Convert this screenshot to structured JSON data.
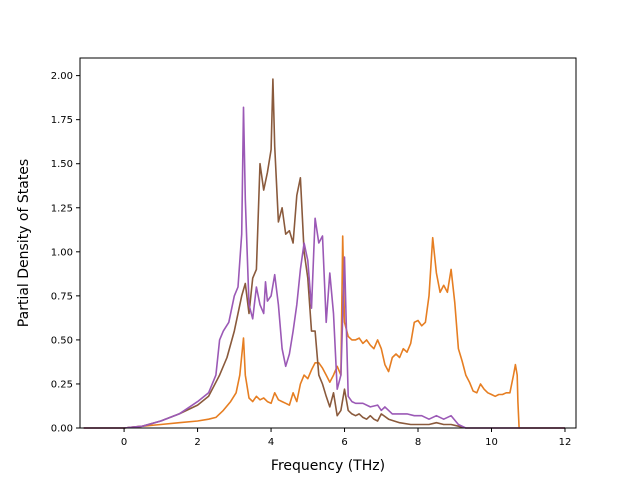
{
  "chart_data": {
    "type": "line",
    "title": "",
    "xlabel": "Frequency (THz)",
    "ylabel": "Partial Density of States",
    "xlim": [
      -1.2,
      12.3
    ],
    "ylim": [
      0,
      2.1
    ],
    "xticks": [
      0,
      2,
      4,
      6,
      8,
      10,
      12
    ],
    "xtick_labels": [
      "0",
      "2",
      "4",
      "6",
      "8",
      "10",
      "12"
    ],
    "yticks": [
      0,
      0.25,
      0.5,
      0.75,
      1.0,
      1.25,
      1.5,
      1.75,
      2.0
    ],
    "ytick_labels": [
      "0.00",
      "0.25",
      "0.50",
      "0.75",
      "1.00",
      "1.25",
      "1.50",
      "1.75",
      "2.00"
    ],
    "grid": false,
    "series": [
      {
        "color": "#e67e22",
        "x": [
          -1.1,
          0,
          0.5,
          1.0,
          1.5,
          2.0,
          2.3,
          2.5,
          2.7,
          2.9,
          3.05,
          3.15,
          3.25,
          3.3,
          3.4,
          3.5,
          3.6,
          3.7,
          3.8,
          3.9,
          4.0,
          4.1,
          4.2,
          4.3,
          4.4,
          4.5,
          4.6,
          4.7,
          4.8,
          4.9,
          5.0,
          5.1,
          5.2,
          5.3,
          5.4,
          5.5,
          5.6,
          5.7,
          5.8,
          5.9,
          5.95,
          6.0,
          6.1,
          6.2,
          6.3,
          6.4,
          6.5,
          6.6,
          6.7,
          6.8,
          6.9,
          7.0,
          7.1,
          7.2,
          7.3,
          7.4,
          7.5,
          7.6,
          7.7,
          7.8,
          7.9,
          8.0,
          8.1,
          8.2,
          8.3,
          8.4,
          8.5,
          8.6,
          8.7,
          8.8,
          8.9,
          9.0,
          9.1,
          9.2,
          9.3,
          9.4,
          9.5,
          9.6,
          9.7,
          9.8,
          9.9,
          10.0,
          10.1,
          10.2,
          10.3,
          10.4,
          10.5,
          10.6,
          10.65,
          10.7,
          10.72,
          10.75,
          10.8,
          11.0,
          12.0
        ],
        "y": [
          0,
          0,
          0.01,
          0.02,
          0.03,
          0.04,
          0.05,
          0.06,
          0.1,
          0.15,
          0.2,
          0.3,
          0.51,
          0.3,
          0.17,
          0.15,
          0.18,
          0.16,
          0.17,
          0.15,
          0.14,
          0.2,
          0.16,
          0.15,
          0.14,
          0.13,
          0.2,
          0.15,
          0.25,
          0.3,
          0.28,
          0.33,
          0.37,
          0.37,
          0.34,
          0.3,
          0.26,
          0.3,
          0.35,
          0.3,
          1.09,
          0.6,
          0.52,
          0.5,
          0.5,
          0.51,
          0.48,
          0.5,
          0.47,
          0.45,
          0.5,
          0.45,
          0.36,
          0.32,
          0.4,
          0.42,
          0.4,
          0.45,
          0.43,
          0.48,
          0.6,
          0.61,
          0.58,
          0.6,
          0.75,
          1.08,
          0.88,
          0.77,
          0.81,
          0.77,
          0.9,
          0.71,
          0.45,
          0.38,
          0.3,
          0.26,
          0.21,
          0.2,
          0.25,
          0.22,
          0.2,
          0.19,
          0.18,
          0.19,
          0.19,
          0.2,
          0.2,
          0.3,
          0.36,
          0.3,
          0.15,
          0.0,
          0.0,
          0.0,
          0.0
        ]
      },
      {
        "color": "#8a5a3c",
        "x": [
          -1.1,
          0,
          0.5,
          1.0,
          1.5,
          2.0,
          2.3,
          2.6,
          2.8,
          3.0,
          3.2,
          3.3,
          3.4,
          3.5,
          3.6,
          3.7,
          3.8,
          3.9,
          4.0,
          4.05,
          4.1,
          4.2,
          4.3,
          4.4,
          4.5,
          4.6,
          4.7,
          4.8,
          4.9,
          5.0,
          5.1,
          5.2,
          5.3,
          5.4,
          5.5,
          5.6,
          5.7,
          5.8,
          5.9,
          6.0,
          6.1,
          6.2,
          6.3,
          6.4,
          6.5,
          6.6,
          6.7,
          6.8,
          6.9,
          7.0,
          7.2,
          7.5,
          7.8,
          8.0,
          8.3,
          8.5,
          8.7,
          8.9,
          9.1,
          9.3,
          9.5,
          10.0,
          11.0,
          12.0
        ],
        "y": [
          0,
          0,
          0.01,
          0.04,
          0.08,
          0.13,
          0.18,
          0.3,
          0.4,
          0.55,
          0.75,
          0.82,
          0.65,
          0.85,
          0.9,
          1.5,
          1.35,
          1.45,
          1.58,
          1.98,
          1.6,
          1.17,
          1.25,
          1.1,
          1.12,
          1.05,
          1.32,
          1.42,
          1.0,
          0.85,
          0.55,
          0.55,
          0.3,
          0.25,
          0.18,
          0.12,
          0.2,
          0.07,
          0.1,
          0.22,
          0.1,
          0.08,
          0.07,
          0.08,
          0.06,
          0.05,
          0.07,
          0.05,
          0.04,
          0.08,
          0.05,
          0.03,
          0.02,
          0.02,
          0.02,
          0.03,
          0.02,
          0.02,
          0.01,
          0,
          0,
          0,
          0,
          0
        ]
      },
      {
        "color": "#9b59b6",
        "x": [
          -1.1,
          0,
          0.5,
          1.0,
          1.5,
          2.0,
          2.3,
          2.5,
          2.6,
          2.7,
          2.85,
          3.0,
          3.1,
          3.2,
          3.25,
          3.3,
          3.4,
          3.5,
          3.6,
          3.7,
          3.8,
          3.85,
          3.9,
          4.0,
          4.1,
          4.2,
          4.3,
          4.4,
          4.5,
          4.6,
          4.7,
          4.8,
          4.9,
          5.0,
          5.1,
          5.2,
          5.3,
          5.4,
          5.5,
          5.6,
          5.7,
          5.8,
          5.9,
          6.0,
          6.1,
          6.2,
          6.3,
          6.5,
          6.7,
          6.9,
          7.0,
          7.1,
          7.3,
          7.5,
          7.7,
          7.9,
          8.1,
          8.3,
          8.5,
          8.7,
          8.9,
          9.1,
          9.3,
          10.0,
          11.0,
          12.0
        ],
        "y": [
          0,
          0,
          0.01,
          0.04,
          0.08,
          0.15,
          0.2,
          0.3,
          0.5,
          0.55,
          0.6,
          0.75,
          0.8,
          1.1,
          1.82,
          1.3,
          0.7,
          0.62,
          0.8,
          0.7,
          0.65,
          0.83,
          0.72,
          0.75,
          0.87,
          0.7,
          0.45,
          0.35,
          0.42,
          0.55,
          0.7,
          0.9,
          1.05,
          0.95,
          0.68,
          1.19,
          1.05,
          1.09,
          0.6,
          0.88,
          0.65,
          0.22,
          0.3,
          0.97,
          0.18,
          0.15,
          0.14,
          0.14,
          0.12,
          0.13,
          0.1,
          0.12,
          0.08,
          0.08,
          0.08,
          0.07,
          0.07,
          0.05,
          0.07,
          0.05,
          0.07,
          0.02,
          0,
          0,
          0,
          0
        ]
      }
    ]
  }
}
